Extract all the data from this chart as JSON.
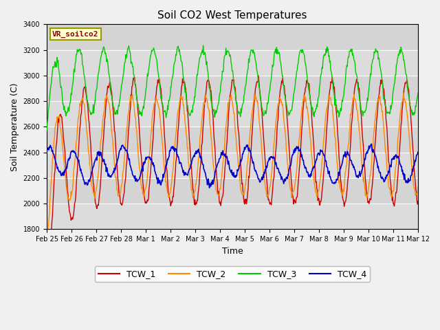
{
  "title": "Soil CO2 West Temperatures",
  "xlabel": "Time",
  "ylabel": "Soil Temperature (C)",
  "annotation": "VR_soilco2",
  "ylim": [
    1800,
    3400
  ],
  "background_color": "#dcdcdc",
  "fig_facecolor": "#f0f0f0",
  "series_colors": {
    "TCW_1": "#cc0000",
    "TCW_2": "#ff8800",
    "TCW_3": "#00cc00",
    "TCW_4": "#0000cc"
  },
  "tick_labels": [
    "Feb 25",
    "Feb 26",
    "Feb 27",
    "Feb 28",
    "Mar 1",
    "Mar 2",
    "Mar 3",
    "Mar 4",
    "Mar 5",
    "Mar 6",
    "Mar 7",
    "Mar 8",
    "Mar 9",
    "Mar 10",
    "Mar 11",
    "Mar 12"
  ],
  "title_fontsize": 11,
  "axis_fontsize": 9,
  "tick_fontsize": 7,
  "legend_fontsize": 9
}
